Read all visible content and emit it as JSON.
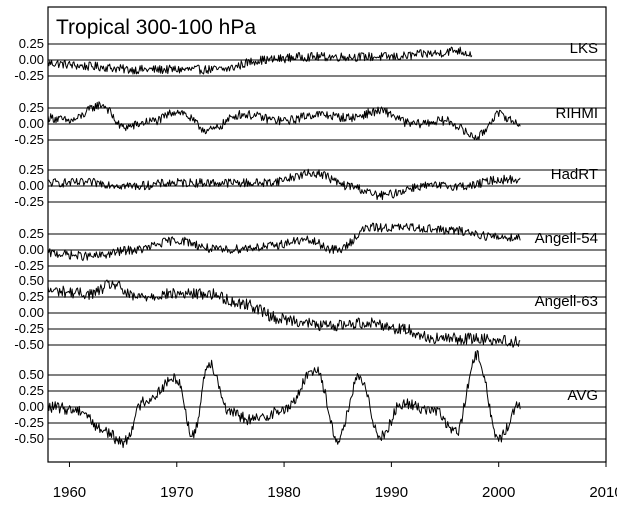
{
  "chart_data": {
    "type": "line",
    "title": "Tropical 300-100 hPa",
    "xlabel": "",
    "ylabel": "",
    "xlim": [
      1958,
      2010
    ],
    "x_ticks": [
      "1960",
      "1970",
      "1980",
      "1990",
      "2000",
      "2010"
    ],
    "grid": "horizontal lines at each y tick",
    "panels": [
      {
        "name": "LKS",
        "y_ticks": [
          "0.25",
          "0.00",
          "-0.25"
        ],
        "x": [
          1958,
          1962,
          1966,
          1970,
          1974,
          1978,
          1982,
          1986,
          1990,
          1994,
          1996,
          1997.5
        ],
        "y": [
          -0.05,
          -0.1,
          -0.15,
          -0.15,
          -0.15,
          0.0,
          0.05,
          0.05,
          0.05,
          0.1,
          0.15,
          0.1
        ]
      },
      {
        "name": "RIHMI",
        "y_ticks": [
          "0.25",
          "0.00",
          "-0.25"
        ],
        "x": [
          1958,
          1960,
          1963,
          1965,
          1968,
          1970,
          1973,
          1976,
          1980,
          1983,
          1986,
          1989,
          1992,
          1995,
          1998,
          2000,
          2002
        ],
        "y": [
          0.1,
          0.05,
          0.3,
          -0.05,
          0.05,
          0.2,
          -0.1,
          0.15,
          0.05,
          0.15,
          0.1,
          0.2,
          0.0,
          0.05,
          -0.2,
          0.15,
          0.0
        ]
      },
      {
        "name": "HadRT",
        "y_ticks": [
          "0.25",
          "0.00",
          "-0.25"
        ],
        "x": [
          1958,
          1962,
          1966,
          1970,
          1974,
          1978,
          1983,
          1986,
          1989,
          1993,
          1997,
          2000,
          2002
        ],
        "y": [
          0.05,
          0.05,
          0.0,
          0.05,
          0.05,
          0.05,
          0.2,
          0.0,
          -0.15,
          0.0,
          0.0,
          0.1,
          0.1
        ]
      },
      {
        "name": "Angell-54",
        "y_ticks": [
          "0.25",
          "0.00",
          "-0.25"
        ],
        "x": [
          1958,
          1962,
          1966,
          1970,
          1974,
          1978,
          1982,
          1985,
          1988,
          1992,
          1996,
          2000,
          2002
        ],
        "y": [
          -0.05,
          -0.1,
          0.0,
          0.15,
          0.0,
          0.05,
          0.15,
          0.0,
          0.35,
          0.35,
          0.3,
          0.2,
          0.2
        ]
      },
      {
        "name": "Angell-63",
        "y_ticks": [
          "0.50",
          "0.25",
          "0.00",
          "-0.25",
          "-0.50"
        ],
        "x": [
          1958,
          1962,
          1964,
          1966,
          1970,
          1973,
          1976,
          1980,
          1984,
          1988,
          1991,
          1994,
          1998,
          2002
        ],
        "y": [
          0.35,
          0.3,
          0.45,
          0.25,
          0.3,
          0.3,
          0.15,
          -0.1,
          -0.2,
          -0.15,
          -0.25,
          -0.4,
          -0.4,
          -0.45
        ]
      },
      {
        "name": "AVG",
        "y_ticks": [
          "0.50",
          "0.25",
          "0.00",
          "-0.25",
          "-0.50"
        ],
        "x": [
          1958,
          1961,
          1963,
          1965,
          1967,
          1970,
          1971.5,
          1973,
          1975,
          1977,
          1980,
          1983,
          1985,
          1987,
          1989,
          1991,
          1994,
          1996,
          1998,
          2000,
          2002
        ],
        "y": [
          0.0,
          -0.05,
          -0.35,
          -0.55,
          0.1,
          0.45,
          -0.45,
          0.7,
          -0.1,
          -0.2,
          -0.05,
          0.6,
          -0.5,
          0.45,
          -0.45,
          0.05,
          -0.05,
          -0.4,
          0.8,
          -0.5,
          0.05
        ]
      }
    ]
  }
}
